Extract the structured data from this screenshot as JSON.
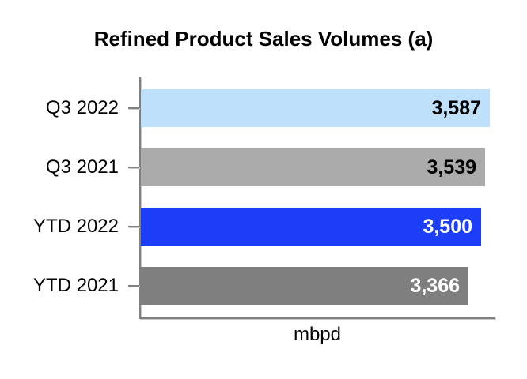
{
  "title": "Refined Product Sales Volumes (a)",
  "axis": {
    "xlabel": "mbpd",
    "line_color": "#808080",
    "line_shadow_color": "#c9c9c9"
  },
  "chart_data": {
    "type": "bar",
    "orientation": "horizontal",
    "title": "Refined Product Sales Volumes (a)",
    "xlabel": "mbpd",
    "ylabel": "",
    "categories": [
      "Q3 2022",
      "Q3 2021",
      "YTD 2022",
      "YTD 2021"
    ],
    "values": [
      3587,
      3539,
      3500,
      3366
    ],
    "value_labels": [
      "3,587",
      "3,539",
      "3,500",
      "3,366"
    ],
    "bar_colors": [
      "#BEE0FB",
      "#ABABAB",
      "#1C3EF9",
      "#7F7F7F"
    ],
    "value_label_colors": [
      "#000000",
      "#000000",
      "#FFFFFF",
      "#FFFFFF"
    ],
    "xlim": [
      0,
      3650
    ],
    "grid": false,
    "legend": false,
    "data_labels_inside_bar_end": true
  }
}
